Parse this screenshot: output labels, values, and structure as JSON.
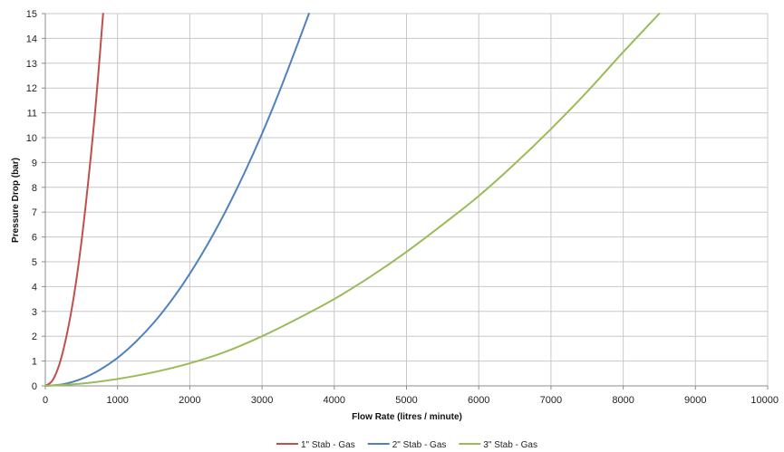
{
  "chart_data": {
    "type": "line",
    "title": "",
    "xlabel": "Flow Rate (litres / minute)",
    "ylabel": "Pressure Drop (bar)",
    "xlim": [
      0,
      10000
    ],
    "ylim": [
      0,
      15
    ],
    "x_ticks": [
      0,
      1000,
      2000,
      3000,
      4000,
      5000,
      6000,
      7000,
      8000,
      9000,
      10000
    ],
    "y_ticks": [
      0,
      1,
      2,
      3,
      4,
      5,
      6,
      7,
      8,
      9,
      10,
      11,
      12,
      13,
      14,
      15
    ],
    "grid": true,
    "legend_position": "bottom",
    "series": [
      {
        "name": "1\" Stab - Gas",
        "color": "#c0504d",
        "x": [
          0,
          100,
          200,
          300,
          400,
          500,
          600,
          700,
          800
        ],
        "y": [
          0,
          0.22,
          0.92,
          2.1,
          3.7,
          5.8,
          8.4,
          11.4,
          15.0
        ]
      },
      {
        "name": "2\" Stab - Gas",
        "color": "#4f81bd",
        "x": [
          0,
          250,
          500,
          750,
          1000,
          1250,
          1500,
          1750,
          2000,
          2250,
          2500,
          2750,
          3000,
          3250,
          3500,
          3650
        ],
        "y": [
          0,
          0.07,
          0.28,
          0.64,
          1.13,
          1.77,
          2.54,
          3.46,
          4.52,
          5.72,
          7.06,
          8.54,
          10.16,
          11.93,
          13.83,
          15.0
        ]
      },
      {
        "name": "3\" Stab - Gas",
        "color": "#9bbb59",
        "x": [
          0,
          500,
          1000,
          1500,
          2000,
          2500,
          3000,
          3500,
          4000,
          4500,
          5000,
          5500,
          6000,
          6500,
          7000,
          7500,
          8000,
          8500
        ],
        "y": [
          0,
          0.09,
          0.28,
          0.55,
          0.91,
          1.38,
          2.0,
          2.72,
          3.5,
          4.4,
          5.4,
          6.5,
          7.65,
          8.95,
          10.35,
          11.85,
          13.45,
          15.0
        ]
      }
    ]
  }
}
